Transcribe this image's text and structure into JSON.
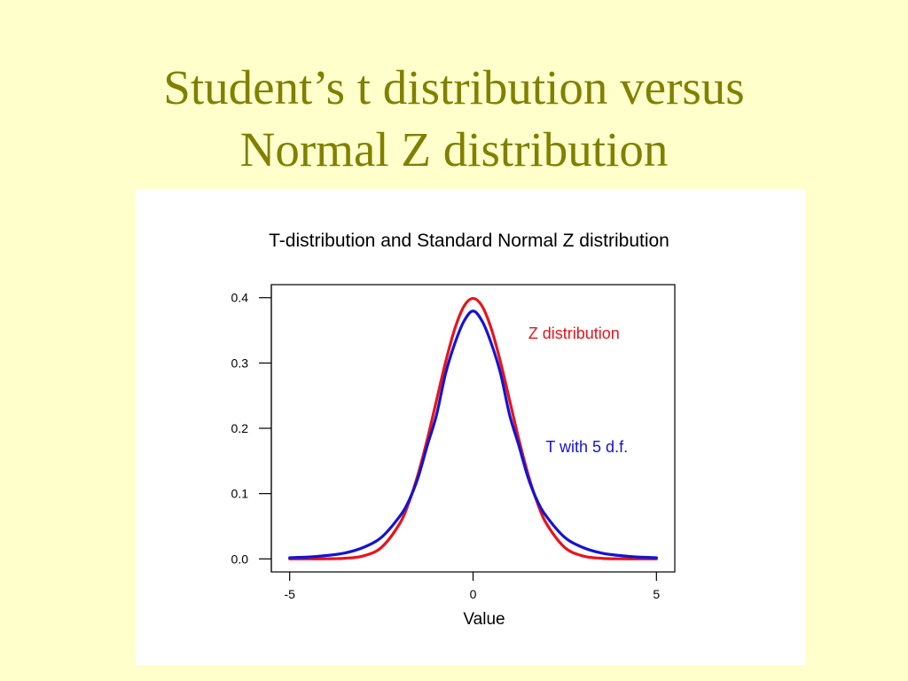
{
  "slide": {
    "title_line1": "Student’s t distribution versus",
    "title_line2": "Normal Z distribution"
  },
  "colors": {
    "background": "#ffffcc",
    "title": "#808000",
    "z_series": "#e8141c",
    "t_series": "#1414d2"
  },
  "chart_data": {
    "type": "line",
    "title": "T-distribution and Standard Normal Z distribution",
    "xlabel": "Value",
    "ylabel": "",
    "xlim": [
      -5.5,
      5.5
    ],
    "ylim": [
      -0.02,
      0.42
    ],
    "xticks": [
      -5,
      0,
      5
    ],
    "xtick_labels": [
      "-5",
      "0",
      "5"
    ],
    "yticks": [
      0.0,
      0.1,
      0.2,
      0.3,
      0.4
    ],
    "ytick_labels": [
      "0.0",
      "0.1",
      "0.2",
      "0.3",
      "0.4"
    ],
    "grid": false,
    "x": [
      -5,
      -4.5,
      -4,
      -3.5,
      -3,
      -2.5,
      -2,
      -1.75,
      -1.5,
      -1.25,
      -1,
      -0.75,
      -0.5,
      -0.25,
      0,
      0.25,
      0.5,
      0.75,
      1,
      1.25,
      1.5,
      1.75,
      2,
      2.5,
      3,
      3.5,
      4,
      4.5,
      5
    ],
    "series": [
      {
        "name": "Z distribution",
        "color": "#e8141c",
        "values": [
          0.0,
          0.0,
          0.0001,
          0.0009,
          0.0044,
          0.0175,
          0.054,
          0.0863,
          0.1295,
          0.1826,
          0.242,
          0.3011,
          0.3521,
          0.3867,
          0.3989,
          0.3867,
          0.3521,
          0.3011,
          0.242,
          0.1826,
          0.1295,
          0.0863,
          0.054,
          0.0175,
          0.0044,
          0.0009,
          0.0001,
          0.0,
          0.0
        ]
      },
      {
        "name": "T with 5 d.f.",
        "color": "#1414d2",
        "values": [
          0.0018,
          0.0027,
          0.0051,
          0.0089,
          0.0173,
          0.0329,
          0.0651,
          0.0891,
          0.1245,
          0.1733,
          0.2197,
          0.2837,
          0.3295,
          0.3638,
          0.3796,
          0.3638,
          0.3295,
          0.2837,
          0.2197,
          0.1733,
          0.1245,
          0.0891,
          0.0651,
          0.0329,
          0.0173,
          0.0089,
          0.0051,
          0.0027,
          0.0018
        ]
      }
    ],
    "annotations": [
      {
        "text": "Z distribution",
        "x": 2.75,
        "y": 0.337,
        "color": "#e8141c"
      },
      {
        "text": "T with 5 d.f.",
        "x": 3.1,
        "y": 0.163,
        "color": "#1414d2"
      }
    ]
  }
}
